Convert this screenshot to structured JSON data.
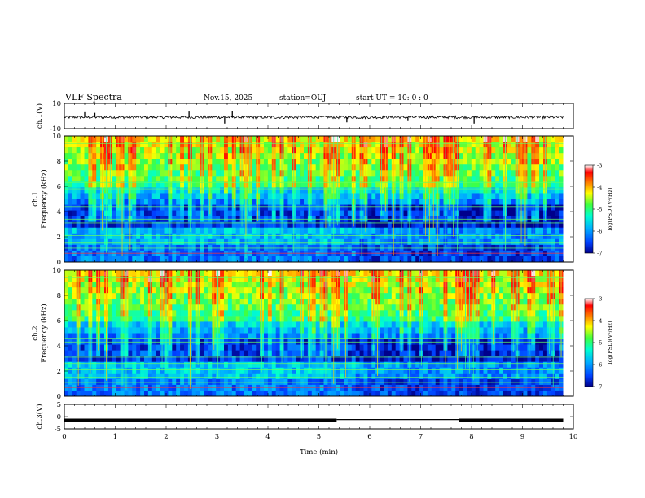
{
  "header": {
    "title": "VLF Spectra",
    "date": "Nov.15, 2025",
    "station": "station=OUJ",
    "start": "start  UT  =   10: 0  : 0"
  },
  "chart_data": {
    "type": "heatmap",
    "title": "VLF Spectra",
    "xlabel": "Time  (min)",
    "x_ticks": [
      "0",
      "1",
      "2",
      "3",
      "4",
      "5",
      "6",
      "7",
      "8",
      "9",
      "10"
    ],
    "xlim": [
      0,
      10
    ],
    "panels": [
      {
        "name": "ch1-waveform",
        "type": "line",
        "ylabel": "ch.1(V)",
        "y_ticks": [
          "10",
          "-10"
        ],
        "ylim": [
          -10,
          10
        ],
        "baseline": -1,
        "spikes": [
          {
            "t": 0.4,
            "v": 3
          },
          {
            "t": 0.6,
            "v": 2.5
          },
          {
            "t": 2.45,
            "v": 3.5
          },
          {
            "t": 3.15,
            "v": -6
          },
          {
            "t": 3.3,
            "v": 4
          },
          {
            "t": 5.55,
            "v": -5
          },
          {
            "t": 6.75,
            "v": -4
          },
          {
            "t": 8.05,
            "v": -6
          }
        ]
      },
      {
        "name": "ch1-spectrogram",
        "type": "heatmap",
        "ylabel_top": "ch.1",
        "ylabel": "Frequency (kHz)",
        "y_ticks": [
          "0",
          "2",
          "4",
          "6",
          "8",
          "10"
        ],
        "ylim": [
          0,
          10
        ],
        "lines_khz": [
          0.7,
          1.1,
          1.5,
          2.1,
          2.6,
          3.1,
          3.4,
          4.4,
          5.8,
          6.3,
          9.4
        ]
      },
      {
        "name": "ch2-spectrogram",
        "type": "heatmap",
        "ylabel_top": "ch.2",
        "ylabel": "Frequency (kHz)",
        "y_ticks": [
          "0",
          "2",
          "4",
          "6",
          "8",
          "10"
        ],
        "ylim": [
          0,
          10
        ],
        "lines_khz": [
          0.7,
          1.1,
          1.5,
          2.1,
          2.6,
          3.1,
          4.3,
          4.6,
          6.3,
          9.4
        ]
      },
      {
        "name": "ch3-waveform",
        "type": "line",
        "ylabel": "ch.3(V)",
        "y_ticks": [
          "5",
          "0",
          "-5"
        ],
        "ylim": [
          -5,
          5
        ],
        "segments": [
          {
            "t0": 0,
            "t1": 5.35,
            "v": -1.5
          },
          {
            "t0": 5.35,
            "t1": 7.75,
            "v": -1.2
          },
          {
            "t0": 7.75,
            "t1": 9.8,
            "v": -1.5
          }
        ]
      }
    ],
    "colorbar": {
      "label": "log(PSD)(V²/Hz)",
      "ticks": [
        "-3",
        "-4",
        "-5",
        "-6",
        "-7"
      ],
      "range": [
        -7,
        -3
      ],
      "colors": [
        "#00008b",
        "#0040ff",
        "#00b0ff",
        "#00ffd0",
        "#40ff40",
        "#ffff00",
        "#ff8000",
        "#ff0000",
        "#ffffff"
      ]
    }
  }
}
